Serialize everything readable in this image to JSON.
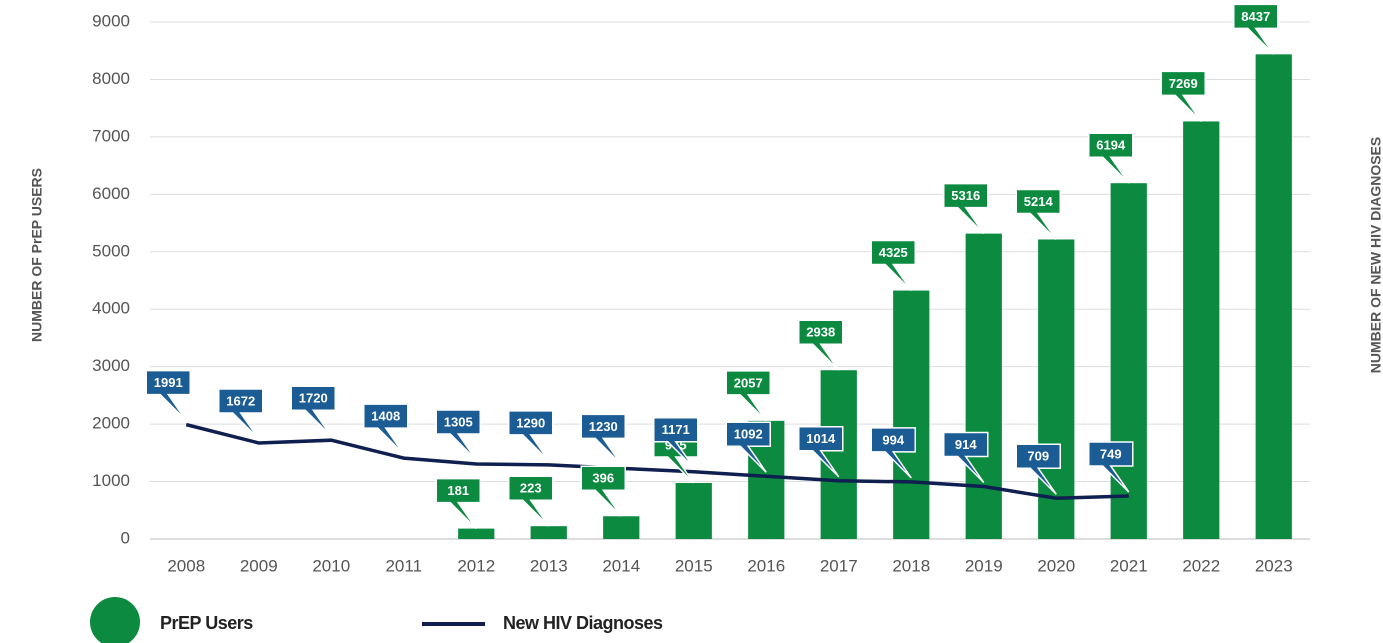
{
  "chart_data": {
    "type": "bar",
    "ylabel": "NUMBER OF PrEP USERS",
    "y2label": "NUMBER OF NEW HIV DIAGNOSES",
    "categories": [
      "2008",
      "2009",
      "2010",
      "2011",
      "2012",
      "2013",
      "2014",
      "2015",
      "2016",
      "2017",
      "2018",
      "2019",
      "2020",
      "2021",
      "2022",
      "2023"
    ],
    "series": [
      {
        "name": "PrEP Users",
        "type": "bar",
        "color": "#0b8a40",
        "values": [
          null,
          null,
          null,
          null,
          181,
          223,
          396,
          975,
          2057,
          2938,
          4325,
          5316,
          5214,
          6194,
          7269,
          8437
        ]
      },
      {
        "name": "New HIV Diagnoses",
        "type": "line",
        "color": "#0f1f4f",
        "label_color": "#1b5c94",
        "values": [
          1991,
          1672,
          1720,
          1408,
          1305,
          1290,
          1230,
          1171,
          1092,
          1014,
          994,
          914,
          709,
          749,
          null,
          null
        ]
      }
    ],
    "ylim": [
      0,
      9000
    ],
    "yticks": [
      0,
      1000,
      2000,
      3000,
      4000,
      5000,
      6000,
      7000,
      8000,
      9000
    ],
    "grid": true
  }
}
